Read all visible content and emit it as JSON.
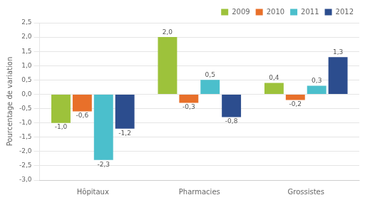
{
  "chart_data": {
    "type": "bar",
    "categories": [
      "Hôpitaux",
      "Pharmacies",
      "Grossistes"
    ],
    "series": [
      {
        "name": "2009",
        "color": "#9dc23b",
        "values": [
          -1.0,
          2.0,
          0.4
        ],
        "value_labels": [
          "-1,0",
          "2,0",
          "0,4"
        ]
      },
      {
        "name": "2010",
        "color": "#e8702a",
        "values": [
          -0.6,
          -0.3,
          -0.2
        ],
        "value_labels": [
          "-0,6",
          "-0,3",
          "-0,2"
        ]
      },
      {
        "name": "2011",
        "color": "#4bbfcc",
        "values": [
          -2.3,
          0.5,
          0.3
        ],
        "value_labels": [
          "-2,3",
          "0,5",
          "0,3"
        ]
      },
      {
        "name": "2012",
        "color": "#2c4d8e",
        "values": [
          -1.2,
          -0.8,
          1.3
        ],
        "value_labels": [
          "-1,2",
          "-0,8",
          "1,3"
        ]
      }
    ],
    "ylabel": "Pourcentage de variation",
    "ylim": [
      -3.0,
      2.5
    ],
    "yticks": [
      {
        "value": -3.0,
        "label": "-3,0"
      },
      {
        "value": -2.5,
        "label": "-2,5"
      },
      {
        "value": -2.0,
        "label": "-2,0"
      },
      {
        "value": -1.5,
        "label": "-1,5"
      },
      {
        "value": -1.0,
        "label": "-1,0"
      },
      {
        "value": -0.5,
        "label": "-0,5"
      },
      {
        "value": 0.0,
        "label": "0,0"
      },
      {
        "value": 0.5,
        "label": "0,5"
      },
      {
        "value": 1.0,
        "label": "1,0"
      },
      {
        "value": 1.5,
        "label": "1,5"
      },
      {
        "value": 2.0,
        "label": "2,0"
      },
      {
        "value": 2.5,
        "label": "2,5"
      }
    ],
    "grid": true,
    "legend": "upper right",
    "data_labels": true
  }
}
